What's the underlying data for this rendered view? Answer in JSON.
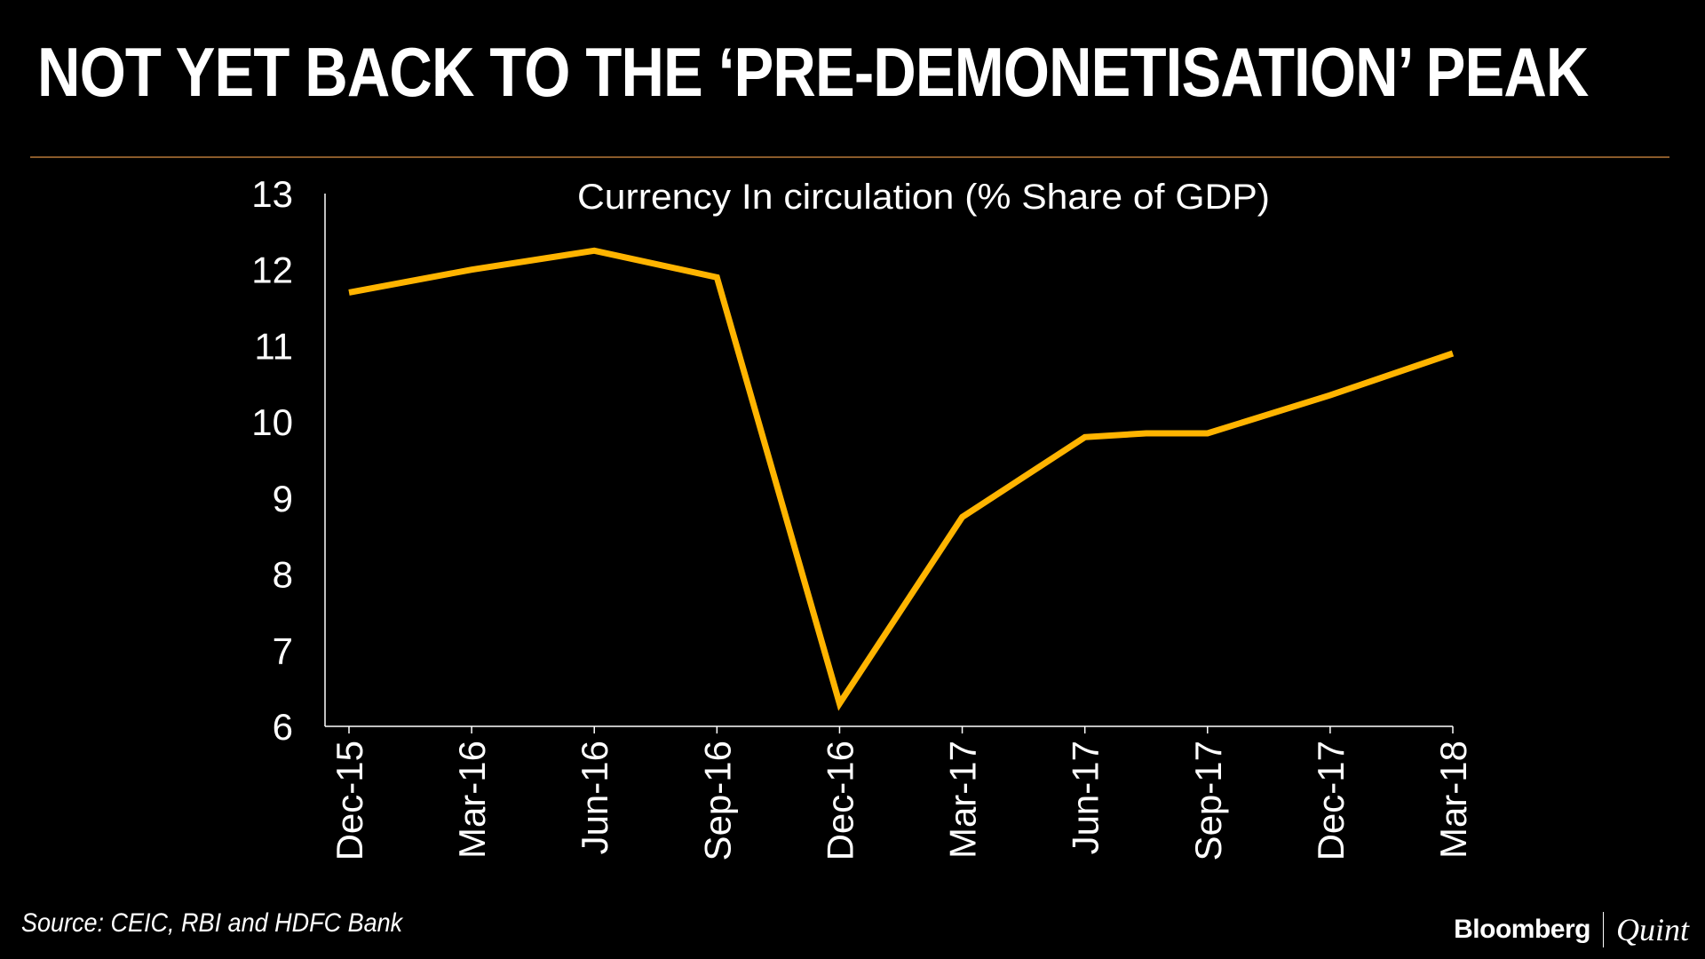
{
  "headline": "NOT YET BACK TO THE ‘PRE-DEMONETISATION’ PEAK",
  "source": "Source: CEIC, RBI and HDFC Bank",
  "brand": {
    "primary": "Bloomberg",
    "secondary": "Quint"
  },
  "colors": {
    "line": "#ffb400",
    "rule": "#8a5a2a",
    "axis": "#ffffff",
    "background": "#000000"
  },
  "chart_data": {
    "type": "line",
    "title": "Currency In circulation (% Share of GDP)",
    "xlabel": "",
    "ylabel": "",
    "ylim": [
      6,
      13
    ],
    "yticks": [
      6,
      7,
      8,
      9,
      10,
      11,
      12,
      13
    ],
    "xticks": [
      "Dec-15",
      "Mar-16",
      "Jun-16",
      "Sep-16",
      "Dec-16",
      "Mar-17",
      "Jun-17",
      "Sep-17",
      "Dec-17",
      "Mar-18"
    ],
    "grid": false,
    "series": [
      {
        "name": "Currency In circulation",
        "x": [
          0,
          1,
          2,
          3,
          4,
          5,
          6,
          6.5,
          7,
          8,
          9
        ],
        "values": [
          11.7,
          12.0,
          12.25,
          11.9,
          6.3,
          8.75,
          9.8,
          9.85,
          9.85,
          10.35,
          10.9
        ]
      }
    ]
  }
}
